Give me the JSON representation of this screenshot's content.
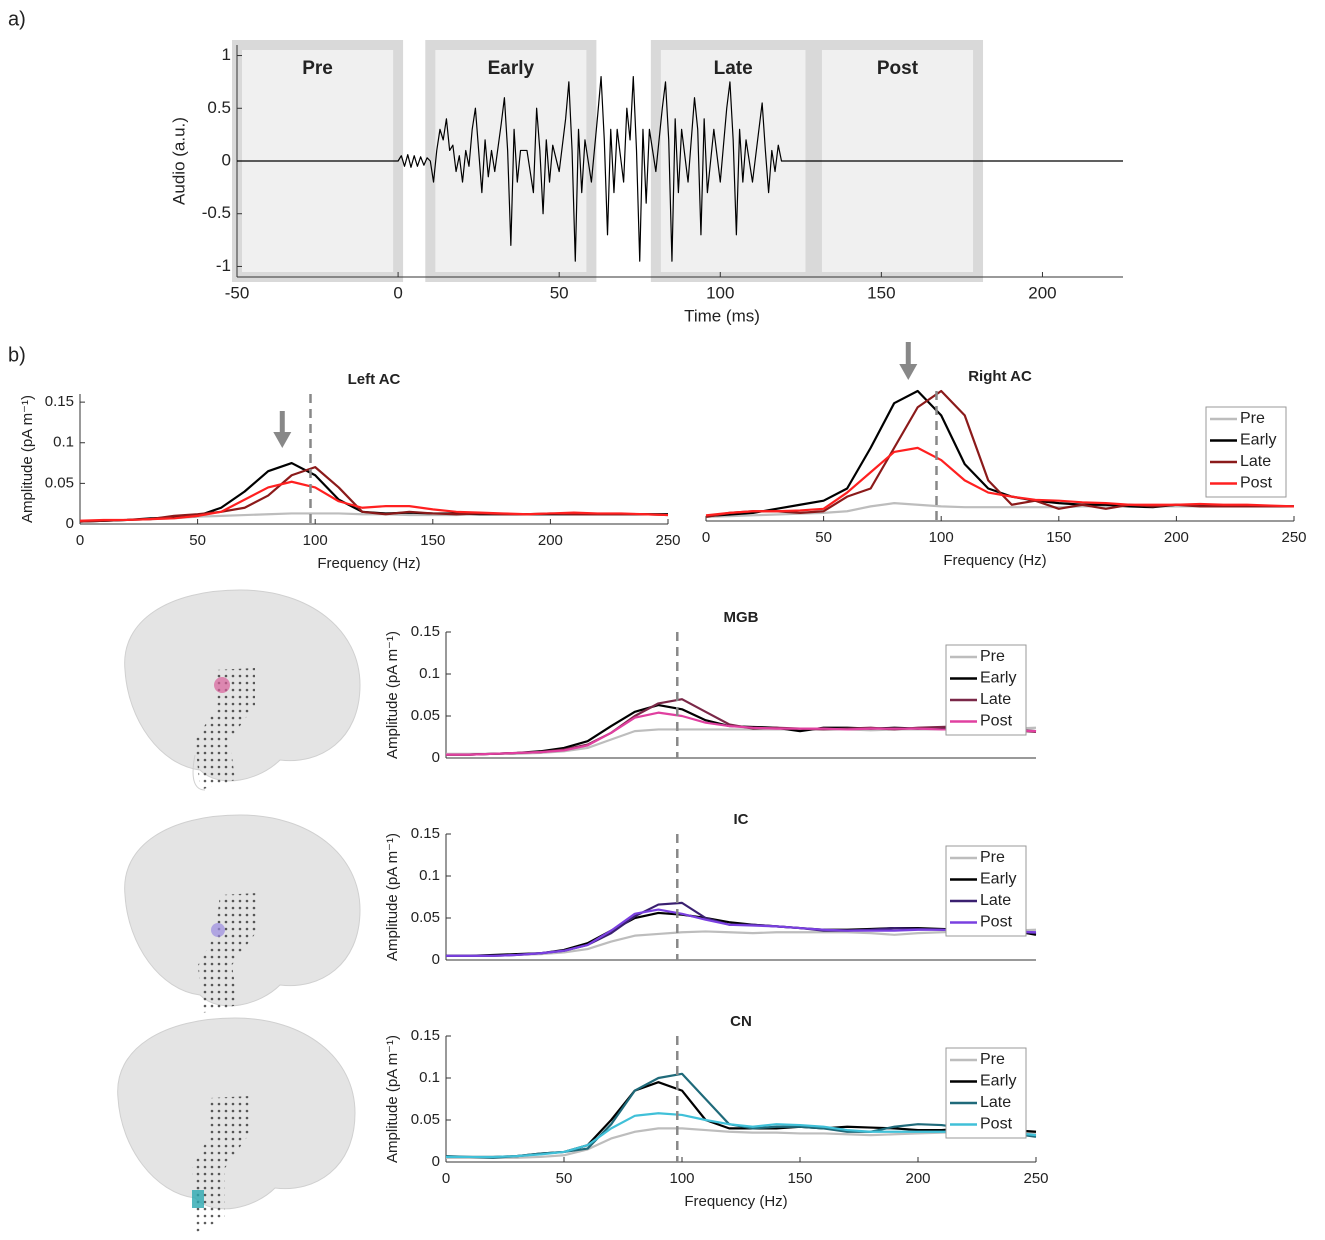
{
  "panel_labels": [
    "a)",
    "b)"
  ],
  "chart_data": [
    {
      "type": "line",
      "xlabel": "Time (ms)",
      "ylabel": "Audio (a.u.)",
      "color": "#000000",
      "xlim": [
        -50,
        225
      ],
      "ylim": [
        -1.1,
        1.1
      ],
      "xticks": [
        -50,
        0,
        50,
        100,
        150,
        200
      ],
      "yticks": [
        -1,
        -0.5,
        0,
        0.5,
        1
      ],
      "windows": [
        {
          "label": "Pre",
          "start": -50,
          "end": 0
        },
        {
          "label": "Early",
          "start": 10,
          "end": 60
        },
        {
          "label": "Late",
          "start": 80,
          "end": 128
        },
        {
          "label": "Post",
          "start": 130,
          "end": 180
        }
      ],
      "x": [
        -50,
        0,
        1,
        2,
        3,
        4,
        5,
        6,
        7,
        8,
        9,
        10,
        11,
        12,
        13,
        14,
        15,
        16,
        17,
        18,
        19,
        20,
        21,
        22,
        23,
        24,
        25,
        26,
        27,
        28,
        29,
        30,
        32,
        33,
        34,
        35,
        36,
        37,
        38,
        40,
        42,
        43,
        44,
        45,
        46,
        47,
        48,
        50,
        52,
        53,
        54,
        55,
        56,
        57,
        58,
        60,
        62,
        63,
        64,
        65,
        66,
        67,
        68,
        70,
        71,
        72,
        73,
        74,
        75,
        76,
        77,
        78,
        80,
        82,
        83,
        84,
        85,
        86,
        87,
        88,
        90,
        92,
        93,
        94,
        95,
        96,
        98,
        100,
        102,
        103,
        104,
        105,
        106,
        107,
        108,
        110,
        112,
        113,
        114,
        115,
        116,
        117,
        118,
        119,
        120,
        225
      ],
      "values": [
        0,
        0,
        0.05,
        -0.05,
        0.06,
        -0.06,
        0.05,
        -0.05,
        0.04,
        -0.04,
        0.03,
        0,
        -0.2,
        0.1,
        0.3,
        0.2,
        0.4,
        0.1,
        0.15,
        -0.1,
        0.05,
        -0.2,
        0.1,
        -0.05,
        0.3,
        0.5,
        0.1,
        -0.3,
        0.2,
        -0.15,
        0.1,
        -0.1,
        0.35,
        0.6,
        0.1,
        -0.8,
        0.3,
        -0.2,
        0.1,
        0.1,
        -0.3,
        0.5,
        0.1,
        -0.5,
        0.2,
        -0.2,
        0.15,
        -0.1,
        0.4,
        0.75,
        0.1,
        -0.95,
        0.3,
        -0.3,
        0.2,
        -0.2,
        0.45,
        0.8,
        0.2,
        -0.7,
        0.3,
        -0.3,
        0.3,
        -0.2,
        0.5,
        0.2,
        0.8,
        0.1,
        -0.95,
        0.3,
        -0.4,
        0.3,
        -0.1,
        0.5,
        0.75,
        0.2,
        -0.95,
        0.4,
        -0.3,
        0.3,
        -0.2,
        0.6,
        0.3,
        -0.7,
        0.4,
        -0.3,
        0.3,
        -0.2,
        0.5,
        0.75,
        0.2,
        -0.7,
        0.3,
        -0.2,
        0.2,
        -0.2,
        0.3,
        0.55,
        0.1,
        -0.3,
        0.1,
        -0.1,
        0.15,
        0,
        0,
        0
      ]
    },
    {
      "type": "line",
      "title": "Left AC",
      "xlabel": "Frequency (Hz)",
      "ylabel": "Amplitude (pA m⁻¹)",
      "xlim": [
        0,
        250
      ],
      "ylim": [
        0,
        0.16
      ],
      "xticks": [
        0,
        50,
        100,
        150,
        200,
        250
      ],
      "yticks": [
        0,
        0.05,
        0.1,
        0.15
      ],
      "vline": 98,
      "arrow": 86,
      "x": [
        0,
        10,
        20,
        30,
        40,
        50,
        60,
        70,
        80,
        90,
        100,
        110,
        120,
        130,
        140,
        150,
        160,
        170,
        180,
        190,
        200,
        210,
        220,
        230,
        240,
        250
      ],
      "series": [
        {
          "name": "Pre",
          "color": "#bdbdbd",
          "values": [
            0.003,
            0.004,
            0.005,
            0.006,
            0.007,
            0.009,
            0.01,
            0.011,
            0.012,
            0.013,
            0.013,
            0.013,
            0.012,
            0.012,
            0.011,
            0.011,
            0.011,
            0.012,
            0.012,
            0.012,
            0.012,
            0.012,
            0.012,
            0.012,
            0.012,
            0.012
          ]
        },
        {
          "name": "Early",
          "color": "#000000",
          "values": [
            0.003,
            0.004,
            0.005,
            0.007,
            0.008,
            0.01,
            0.02,
            0.04,
            0.065,
            0.075,
            0.06,
            0.03,
            0.015,
            0.013,
            0.014,
            0.013,
            0.013,
            0.012,
            0.012,
            0.012,
            0.012,
            0.012,
            0.012,
            0.012,
            0.012,
            0.012
          ]
        },
        {
          "name": "Late",
          "color": "#8b1a1a",
          "values": [
            0.003,
            0.004,
            0.005,
            0.006,
            0.01,
            0.012,
            0.015,
            0.02,
            0.035,
            0.06,
            0.07,
            0.045,
            0.015,
            0.012,
            0.015,
            0.013,
            0.012,
            0.013,
            0.012,
            0.012,
            0.013,
            0.012,
            0.012,
            0.012,
            0.012,
            0.011
          ]
        },
        {
          "name": "Post",
          "color": "#ff2020",
          "values": [
            0.004,
            0.005,
            0.005,
            0.006,
            0.007,
            0.01,
            0.015,
            0.03,
            0.045,
            0.052,
            0.045,
            0.028,
            0.02,
            0.022,
            0.022,
            0.018,
            0.015,
            0.014,
            0.013,
            0.012,
            0.013,
            0.014,
            0.013,
            0.013,
            0.012,
            0.011
          ]
        }
      ]
    },
    {
      "type": "line",
      "title": "Right AC",
      "xlabel": "Frequency (Hz)",
      "xlim": [
        0,
        250
      ],
      "ylim": [
        0,
        0.16
      ],
      "xticks": [
        0,
        50,
        100,
        150,
        200,
        250
      ],
      "vline": 98,
      "arrow": 86,
      "legend": "upper right",
      "x": [
        0,
        10,
        20,
        30,
        40,
        50,
        60,
        70,
        80,
        90,
        100,
        110,
        120,
        130,
        140,
        150,
        160,
        170,
        180,
        190,
        200,
        210,
        220,
        230,
        240,
        250
      ],
      "series": [
        {
          "name": "Pre",
          "color": "#bdbdbd",
          "values": [
            0.005,
            0.006,
            0.007,
            0.008,
            0.009,
            0.01,
            0.012,
            0.018,
            0.022,
            0.02,
            0.018,
            0.017,
            0.017,
            0.017,
            0.017,
            0.017,
            0.018,
            0.018,
            0.018,
            0.018,
            0.018,
            0.018,
            0.018,
            0.018,
            0.018,
            0.018
          ]
        },
        {
          "name": "Early",
          "color": "#000000",
          "values": [
            0.006,
            0.008,
            0.01,
            0.015,
            0.02,
            0.025,
            0.04,
            0.09,
            0.145,
            0.16,
            0.13,
            0.07,
            0.04,
            0.03,
            0.025,
            0.022,
            0.02,
            0.02,
            0.018,
            0.017,
            0.02,
            0.02,
            0.018,
            0.018,
            0.018,
            0.018
          ]
        },
        {
          "name": "Late",
          "color": "#8b1a1a",
          "values": [
            0.005,
            0.01,
            0.012,
            0.012,
            0.01,
            0.012,
            0.03,
            0.04,
            0.09,
            0.14,
            0.16,
            0.13,
            0.05,
            0.02,
            0.025,
            0.015,
            0.02,
            0.015,
            0.02,
            0.018,
            0.02,
            0.018,
            0.018,
            0.018,
            0.018,
            0.018
          ]
        },
        {
          "name": "Post",
          "color": "#ff2020",
          "values": [
            0.007,
            0.01,
            0.012,
            0.012,
            0.013,
            0.015,
            0.035,
            0.06,
            0.085,
            0.09,
            0.075,
            0.05,
            0.035,
            0.03,
            0.026,
            0.025,
            0.023,
            0.022,
            0.02,
            0.02,
            0.02,
            0.021,
            0.02,
            0.02,
            0.019,
            0.018
          ]
        }
      ]
    },
    {
      "type": "line",
      "title": "MGB",
      "ylabel": "Amplitude (pA m⁻¹)",
      "xlim": [
        0,
        250
      ],
      "ylim": [
        0,
        0.15
      ],
      "yticks": [
        0,
        0.05,
        0.1,
        0.15
      ],
      "vline": 98,
      "legend": "upper right",
      "x": [
        0,
        10,
        20,
        30,
        40,
        50,
        60,
        70,
        80,
        90,
        100,
        110,
        120,
        130,
        140,
        150,
        160,
        170,
        180,
        190,
        200,
        210,
        220,
        230,
        240,
        250
      ],
      "series": [
        {
          "name": "Pre",
          "color": "#bdbdbd",
          "values": [
            0.005,
            0.005,
            0.005,
            0.005,
            0.006,
            0.008,
            0.012,
            0.022,
            0.032,
            0.034,
            0.034,
            0.034,
            0.034,
            0.034,
            0.034,
            0.034,
            0.034,
            0.034,
            0.033,
            0.034,
            0.034,
            0.034,
            0.034,
            0.034,
            0.035,
            0.036
          ]
        },
        {
          "name": "Early",
          "color": "#000000",
          "values": [
            0.004,
            0.004,
            0.005,
            0.006,
            0.008,
            0.012,
            0.02,
            0.038,
            0.055,
            0.063,
            0.058,
            0.045,
            0.038,
            0.037,
            0.036,
            0.032,
            0.036,
            0.036,
            0.035,
            0.036,
            0.035,
            0.036,
            0.037,
            0.035,
            0.034,
            0.032
          ]
        },
        {
          "name": "Late",
          "color": "#7a2848",
          "values": [
            0.004,
            0.004,
            0.005,
            0.006,
            0.007,
            0.01,
            0.016,
            0.03,
            0.05,
            0.065,
            0.07,
            0.055,
            0.04,
            0.035,
            0.036,
            0.035,
            0.034,
            0.035,
            0.036,
            0.034,
            0.036,
            0.037,
            0.038,
            0.034,
            0.033,
            0.031
          ]
        },
        {
          "name": "Post",
          "color": "#e040a0",
          "values": [
            0.004,
            0.004,
            0.005,
            0.006,
            0.007,
            0.009,
            0.015,
            0.03,
            0.048,
            0.054,
            0.05,
            0.042,
            0.038,
            0.036,
            0.035,
            0.035,
            0.035,
            0.034,
            0.035,
            0.035,
            0.035,
            0.034,
            0.034,
            0.034,
            0.033,
            0.032
          ]
        }
      ]
    },
    {
      "type": "line",
      "title": "IC",
      "ylabel": "Amplitude (pA m⁻¹)",
      "xlim": [
        0,
        250
      ],
      "ylim": [
        0,
        0.15
      ],
      "yticks": [
        0,
        0.05,
        0.1,
        0.15
      ],
      "vline": 98,
      "legend": "upper right",
      "x": [
        0,
        10,
        20,
        30,
        40,
        50,
        60,
        70,
        80,
        90,
        100,
        110,
        120,
        130,
        140,
        150,
        160,
        170,
        180,
        190,
        200,
        210,
        220,
        230,
        240,
        250
      ],
      "series": [
        {
          "name": "Pre",
          "color": "#bdbdbd",
          "values": [
            0.005,
            0.005,
            0.005,
            0.006,
            0.007,
            0.009,
            0.013,
            0.022,
            0.029,
            0.031,
            0.033,
            0.034,
            0.033,
            0.032,
            0.033,
            0.033,
            0.033,
            0.033,
            0.032,
            0.03,
            0.032,
            0.033,
            0.034,
            0.035,
            0.035,
            0.036
          ]
        },
        {
          "name": "Early",
          "color": "#000000",
          "values": [
            0.005,
            0.005,
            0.006,
            0.007,
            0.008,
            0.012,
            0.02,
            0.035,
            0.05,
            0.056,
            0.054,
            0.05,
            0.045,
            0.042,
            0.04,
            0.038,
            0.036,
            0.036,
            0.037,
            0.038,
            0.038,
            0.037,
            0.036,
            0.036,
            0.035,
            0.03
          ]
        },
        {
          "name": "Late",
          "color": "#3a2070",
          "values": [
            0.005,
            0.005,
            0.005,
            0.006,
            0.008,
            0.011,
            0.018,
            0.032,
            0.052,
            0.066,
            0.068,
            0.05,
            0.042,
            0.042,
            0.04,
            0.038,
            0.035,
            0.035,
            0.036,
            0.038,
            0.037,
            0.036,
            0.035,
            0.035,
            0.034,
            0.032
          ]
        },
        {
          "name": "Post",
          "color": "#7a40e0",
          "values": [
            0.005,
            0.005,
            0.005,
            0.006,
            0.008,
            0.011,
            0.018,
            0.035,
            0.055,
            0.06,
            0.055,
            0.048,
            0.042,
            0.041,
            0.04,
            0.038,
            0.036,
            0.035,
            0.035,
            0.035,
            0.036,
            0.036,
            0.035,
            0.034,
            0.034,
            0.033
          ]
        }
      ]
    },
    {
      "type": "line",
      "title": "CN",
      "xlabel": "Frequency (Hz)",
      "ylabel": "Amplitude (pA m⁻¹)",
      "xlim": [
        0,
        250
      ],
      "ylim": [
        0,
        0.15
      ],
      "xticks": [
        0,
        50,
        100,
        150,
        200,
        250
      ],
      "yticks": [
        0,
        0.05,
        0.1,
        0.15
      ],
      "vline": 98,
      "legend": "upper right",
      "x": [
        0,
        10,
        20,
        30,
        40,
        50,
        60,
        70,
        80,
        90,
        100,
        110,
        120,
        130,
        140,
        150,
        160,
        170,
        180,
        190,
        200,
        210,
        220,
        230,
        240,
        250
      ],
      "series": [
        {
          "name": "Pre",
          "color": "#bdbdbd",
          "values": [
            0.005,
            0.005,
            0.005,
            0.005,
            0.006,
            0.008,
            0.015,
            0.028,
            0.036,
            0.04,
            0.04,
            0.038,
            0.036,
            0.035,
            0.035,
            0.034,
            0.034,
            0.033,
            0.032,
            0.033,
            0.034,
            0.035,
            0.036,
            0.035,
            0.035,
            0.035
          ]
        },
        {
          "name": "Early",
          "color": "#000000",
          "values": [
            0.006,
            0.006,
            0.006,
            0.007,
            0.01,
            0.012,
            0.02,
            0.05,
            0.085,
            0.095,
            0.085,
            0.05,
            0.04,
            0.04,
            0.04,
            0.042,
            0.04,
            0.042,
            0.041,
            0.04,
            0.038,
            0.038,
            0.04,
            0.038,
            0.038,
            0.036
          ]
        },
        {
          "name": "Late",
          "color": "#1f6a7a",
          "values": [
            0.007,
            0.006,
            0.005,
            0.007,
            0.01,
            0.012,
            0.016,
            0.045,
            0.085,
            0.1,
            0.105,
            0.075,
            0.045,
            0.04,
            0.042,
            0.042,
            0.04,
            0.036,
            0.036,
            0.042,
            0.045,
            0.044,
            0.04,
            0.038,
            0.034,
            0.03
          ]
        },
        {
          "name": "Post",
          "color": "#40c0d8",
          "values": [
            0.006,
            0.006,
            0.006,
            0.007,
            0.009,
            0.012,
            0.02,
            0.04,
            0.055,
            0.058,
            0.056,
            0.05,
            0.045,
            0.042,
            0.045,
            0.044,
            0.042,
            0.038,
            0.036,
            0.036,
            0.036,
            0.036,
            0.036,
            0.036,
            0.035,
            0.032
          ]
        }
      ]
    }
  ]
}
